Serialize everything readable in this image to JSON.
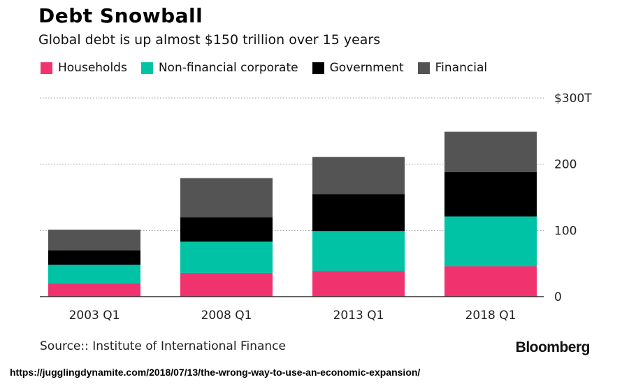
{
  "header": {
    "title": "Debt Snowball",
    "subtitle": "Global debt is up almost $150 trillion over 15 years"
  },
  "footer": {
    "source": "Source:: Institute of International Finance",
    "brand": "Bloomberg",
    "url": "https://jugglingdynamite.com/2018/07/13/the-wrong-way-to-use-an-economic-expansion/"
  },
  "chart_data": {
    "type": "bar",
    "stacked": true,
    "title": "Debt Snowball",
    "subtitle": "Global debt is up almost $150 trillion over 15 years",
    "xlabel": "",
    "ylabel": "",
    "categories": [
      "2003 Q1",
      "2008 Q1",
      "2013 Q1",
      "2018 Q1"
    ],
    "series": [
      {
        "name": "Households",
        "color": "#f0336f",
        "values": [
          20,
          36,
          39,
          46
        ]
      },
      {
        "name": "Non-financial corporate",
        "color": "#00c3a5",
        "values": [
          28,
          47,
          60,
          75
        ]
      },
      {
        "name": "Government",
        "color": "#000000",
        "values": [
          22,
          37,
          56,
          67
        ]
      },
      {
        "name": "Financial",
        "color": "#545454",
        "values": [
          31,
          59,
          56,
          61
        ]
      }
    ],
    "ylim": [
      0,
      300
    ],
    "yticks": [
      0,
      100,
      200,
      300
    ],
    "ytick_labels": [
      "0",
      "100",
      "200",
      "$300T"
    ],
    "grid": true,
    "y_axis_side": "right",
    "legend_position": "top-left"
  }
}
